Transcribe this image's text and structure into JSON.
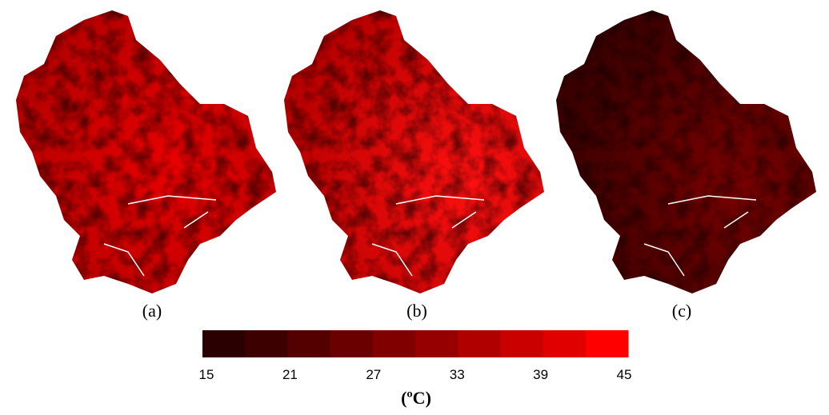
{
  "panels": [
    {
      "label": "(a)"
    },
    {
      "label": "(b)"
    },
    {
      "label": "(c)"
    }
  ],
  "colorbar": {
    "lim": [
      15,
      45
    ],
    "ticks": [
      15,
      21,
      27,
      33,
      39,
      45
    ],
    "colors": [
      "#2a0000",
      "#3d0000",
      "#550000",
      "#6a0000",
      "#800000",
      "#960000",
      "#b00000",
      "#c80000",
      "#e00000",
      "#ff0000"
    ],
    "unit": "(ºC)"
  }
}
